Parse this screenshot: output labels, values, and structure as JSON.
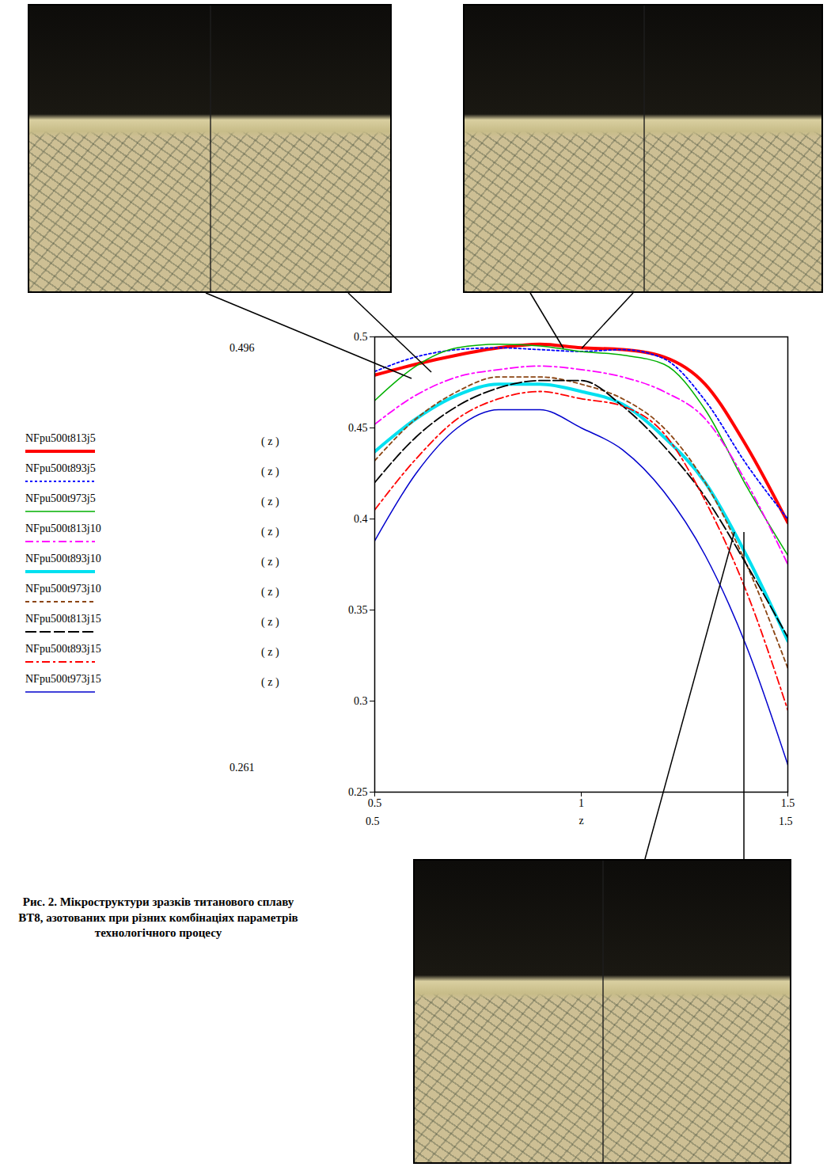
{
  "chart_data": {
    "type": "line",
    "caption": "Рис. 2. Мікроструктури зразків титанового сплаву ВТ8, азотованих при різних комбінаціях параметрів технологічного процесу",
    "x_label": "z",
    "legend_arg": "( z )",
    "annotations": [
      "0.496",
      "0.261",
      "0.5",
      "1.5"
    ],
    "x": [
      0.5,
      0.6,
      0.7,
      0.8,
      0.9,
      1.0,
      1.1,
      1.2,
      1.3,
      1.4,
      1.5
    ],
    "xlim": [
      0.5,
      1.5
    ],
    "xticks": [
      0.5,
      1,
      1.5
    ],
    "ylim": [
      0.25,
      0.5
    ],
    "yticks": [
      0.25,
      0.3,
      0.35,
      0.4,
      0.45,
      0.5
    ],
    "grid": false,
    "legend": "left",
    "series": [
      {
        "name": "NFpu500t813j5",
        "color": "#ff0000",
        "line_style": "thick",
        "values": [
          0.479,
          0.485,
          0.49,
          0.494,
          0.496,
          0.494,
          0.493,
          0.489,
          0.474,
          0.44,
          0.398
        ]
      },
      {
        "name": "NFpu500t893j5",
        "color": "#0000ff",
        "line_style": "dotted",
        "values": [
          0.481,
          0.489,
          0.493,
          0.494,
          0.493,
          0.492,
          0.493,
          0.488,
          0.465,
          0.43,
          0.4
        ]
      },
      {
        "name": "NFpu500t973j5",
        "color": "#00b000",
        "line_style": "solid",
        "values": [
          0.465,
          0.484,
          0.494,
          0.496,
          0.495,
          0.492,
          0.49,
          0.485,
          0.46,
          0.418,
          0.38
        ]
      },
      {
        "name": "NFpu500t813j10",
        "color": "#ff00ff",
        "line_style": "dash-dot",
        "values": [
          0.452,
          0.468,
          0.478,
          0.482,
          0.484,
          0.482,
          0.478,
          0.47,
          0.455,
          0.42,
          0.375
        ]
      },
      {
        "name": "NFpu500t893j10",
        "color": "#00e0f0",
        "line_style": "thick",
        "values": [
          0.437,
          0.455,
          0.468,
          0.474,
          0.474,
          0.47,
          0.463,
          0.445,
          0.42,
          0.38,
          0.333
        ]
      },
      {
        "name": "NFpu500t973j10",
        "color": "#8b4513",
        "line_style": "dashed",
        "values": [
          0.432,
          0.455,
          0.47,
          0.478,
          0.478,
          0.474,
          0.466,
          0.45,
          0.42,
          0.375,
          0.318
        ]
      },
      {
        "name": "NFpu500t813j15",
        "color": "#000000",
        "line_style": "long-dash",
        "values": [
          0.42,
          0.445,
          0.462,
          0.472,
          0.476,
          0.476,
          0.462,
          0.44,
          0.412,
          0.375,
          0.335
        ]
      },
      {
        "name": "NFpu500t893j15",
        "color": "#ff0000",
        "line_style": "dash-dot",
        "values": [
          0.405,
          0.433,
          0.455,
          0.466,
          0.47,
          0.466,
          0.462,
          0.447,
          0.41,
          0.36,
          0.295
        ]
      },
      {
        "name": "NFpu500t973j15",
        "color": "#0000cd",
        "line_style": "solid",
        "values": [
          0.388,
          0.425,
          0.45,
          0.46,
          0.46,
          0.45,
          0.438,
          0.415,
          0.38,
          0.33,
          0.265
        ]
      }
    ]
  }
}
